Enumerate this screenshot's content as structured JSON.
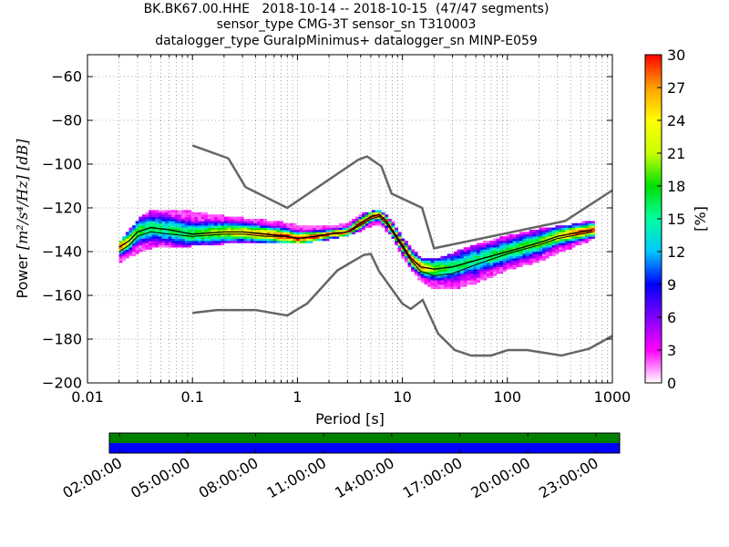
{
  "chart_data": [
    {
      "type": "heatmap",
      "title_lines": [
        "BK.BK67.00.HHE   2018-10-14 -- 2018-10-15  (47/47 segments)",
        "sensor_type CMG-3T sensor_sn T310003",
        "datalogger_type GuralpMinimus+ datalogger_sn MINP-E059"
      ],
      "xlabel": "Period [s]",
      "ylabel_prefix": "Power ",
      "ylabel_units": "[m²/s⁴/Hz] [dB]",
      "x_scale": "log",
      "xlim": [
        0.01,
        1000
      ],
      "ylim": [
        -200,
        -50
      ],
      "xticks": [
        0.01,
        0.1,
        1,
        10,
        100,
        1000
      ],
      "xtick_labels": [
        "0.01",
        "0.1",
        "1",
        "10",
        "100",
        "1000"
      ],
      "yticks": [
        -200,
        -180,
        -160,
        -140,
        -120,
        -100,
        -80,
        -60
      ],
      "ytick_labels": [
        "−200",
        "−180",
        "−160",
        "−140",
        "−120",
        "−100",
        "−80",
        "−60"
      ],
      "grid": true,
      "colorbar": {
        "label": "[%]",
        "range": [
          0,
          30
        ],
        "ticks": [
          0,
          3,
          6,
          9,
          12,
          15,
          18,
          21,
          24,
          27,
          30
        ],
        "tick_labels": [
          "0",
          "3",
          "6",
          "9",
          "12",
          "15",
          "18",
          "21",
          "24",
          "27",
          "30"
        ],
        "colormap": [
          "#ffffff",
          "#ff00ff",
          "#8000ff",
          "#0000ff",
          "#00c8ff",
          "#00ffa0",
          "#00e000",
          "#c8ff00",
          "#ffff00",
          "#ffa000",
          "#ff0000"
        ]
      },
      "noise_model_high": {
        "period": [
          0.1,
          0.22,
          0.32,
          0.8,
          3.8,
          4.6,
          6.3,
          7.9,
          15.4,
          20,
          354.8,
          1000
        ],
        "power": [
          -91.5,
          -97.4,
          -110.5,
          -120.0,
          -98.0,
          -96.5,
          -101.0,
          -113.5,
          -120.0,
          -138.5,
          -126.0,
          -112.0
        ]
      },
      "noise_model_low": {
        "period": [
          0.1,
          0.17,
          0.4,
          0.8,
          1.24,
          2.4,
          4.3,
          5.0,
          6.0,
          10.0,
          12.0,
          15.6,
          21.9,
          31.6,
          45.0,
          70.0,
          101.0,
          154.0,
          328.0,
          600.0,
          1000.0
        ],
        "power": [
          -168.0,
          -166.7,
          -166.7,
          -169.2,
          -163.7,
          -148.6,
          -141.5,
          -141.1,
          -149.0,
          -163.8,
          -166.2,
          -162.1,
          -177.5,
          -185.0,
          -187.5,
          -187.5,
          -185.0,
          -185.0,
          -187.5,
          -184.4,
          -178.5
        ]
      },
      "mode_curve": {
        "period": [
          0.02,
          0.025,
          0.03,
          0.04,
          0.06,
          0.1,
          0.2,
          0.3,
          0.5,
          0.8,
          1.0,
          1.5,
          2.0,
          3.0,
          4.0,
          5.0,
          6.0,
          7.0,
          8.0,
          10.0,
          12.0,
          15.0,
          20.0,
          30.0,
          50.0,
          100.0,
          200.0,
          300.0,
          500.0,
          650.0
        ],
        "power": [
          -138,
          -135,
          -131,
          -129,
          -130,
          -132,
          -131,
          -131,
          -132,
          -133,
          -134,
          -133,
          -132,
          -131,
          -127,
          -124,
          -123,
          -126,
          -130,
          -137,
          -143,
          -147,
          -148,
          -147,
          -144,
          -140,
          -136,
          -133,
          -131,
          -130
        ]
      },
      "mean_curve": {
        "period": [
          0.02,
          0.025,
          0.03,
          0.04,
          0.06,
          0.1,
          0.2,
          0.3,
          0.5,
          0.8,
          1.0,
          1.5,
          2.0,
          3.0,
          4.0,
          5.0,
          6.0,
          7.0,
          8.0,
          10.0,
          12.0,
          15.0,
          20.0,
          30.0,
          50.0,
          100.0,
          200.0,
          300.0,
          500.0,
          650.0
        ],
        "power": [
          -140,
          -137,
          -133,
          -131,
          -132,
          -133,
          -132,
          -132,
          -133,
          -133,
          -134,
          -133,
          -132,
          -131,
          -128,
          -125,
          -124,
          -127,
          -131,
          -138,
          -144,
          -149,
          -151,
          -150,
          -146,
          -141,
          -137,
          -134,
          -132,
          -131
        ]
      },
      "histogram_spread": {
        "period": [
          0.02,
          0.03,
          0.04,
          0.06,
          0.1,
          0.2,
          0.3,
          0.5,
          1.0,
          2.0,
          3.0,
          4.0,
          5.0,
          6.0,
          8.0,
          10.0,
          15.0,
          20.0,
          30.0,
          50.0,
          100.0,
          200.0,
          400.0,
          650.0
        ],
        "power_min": [
          -145,
          -140,
          -138,
          -138,
          -137,
          -136,
          -136,
          -136,
          -136,
          -134,
          -132,
          -130,
          -128,
          -127,
          -133,
          -142,
          -153,
          -157,
          -157,
          -154,
          -148,
          -144,
          -138,
          -134
        ],
        "power_max": [
          -136,
          -126,
          -121,
          -121,
          -122,
          -124,
          -125,
          -126,
          -128,
          -129,
          -127,
          -123,
          -122,
          -121,
          -126,
          -134,
          -143,
          -144,
          -141,
          -137,
          -133,
          -130,
          -128,
          -126
        ]
      },
      "timeline": {
        "ticks": [
          "02:00:00",
          "05:00:00",
          "08:00:00",
          "11:00:00",
          "14:00:00",
          "17:00:00",
          "20:00:00",
          "23:00:00"
        ],
        "data_availability": "full",
        "gaps": "none",
        "colors": {
          "availability": "#008000",
          "gaps": "#0000ff"
        }
      }
    }
  ]
}
